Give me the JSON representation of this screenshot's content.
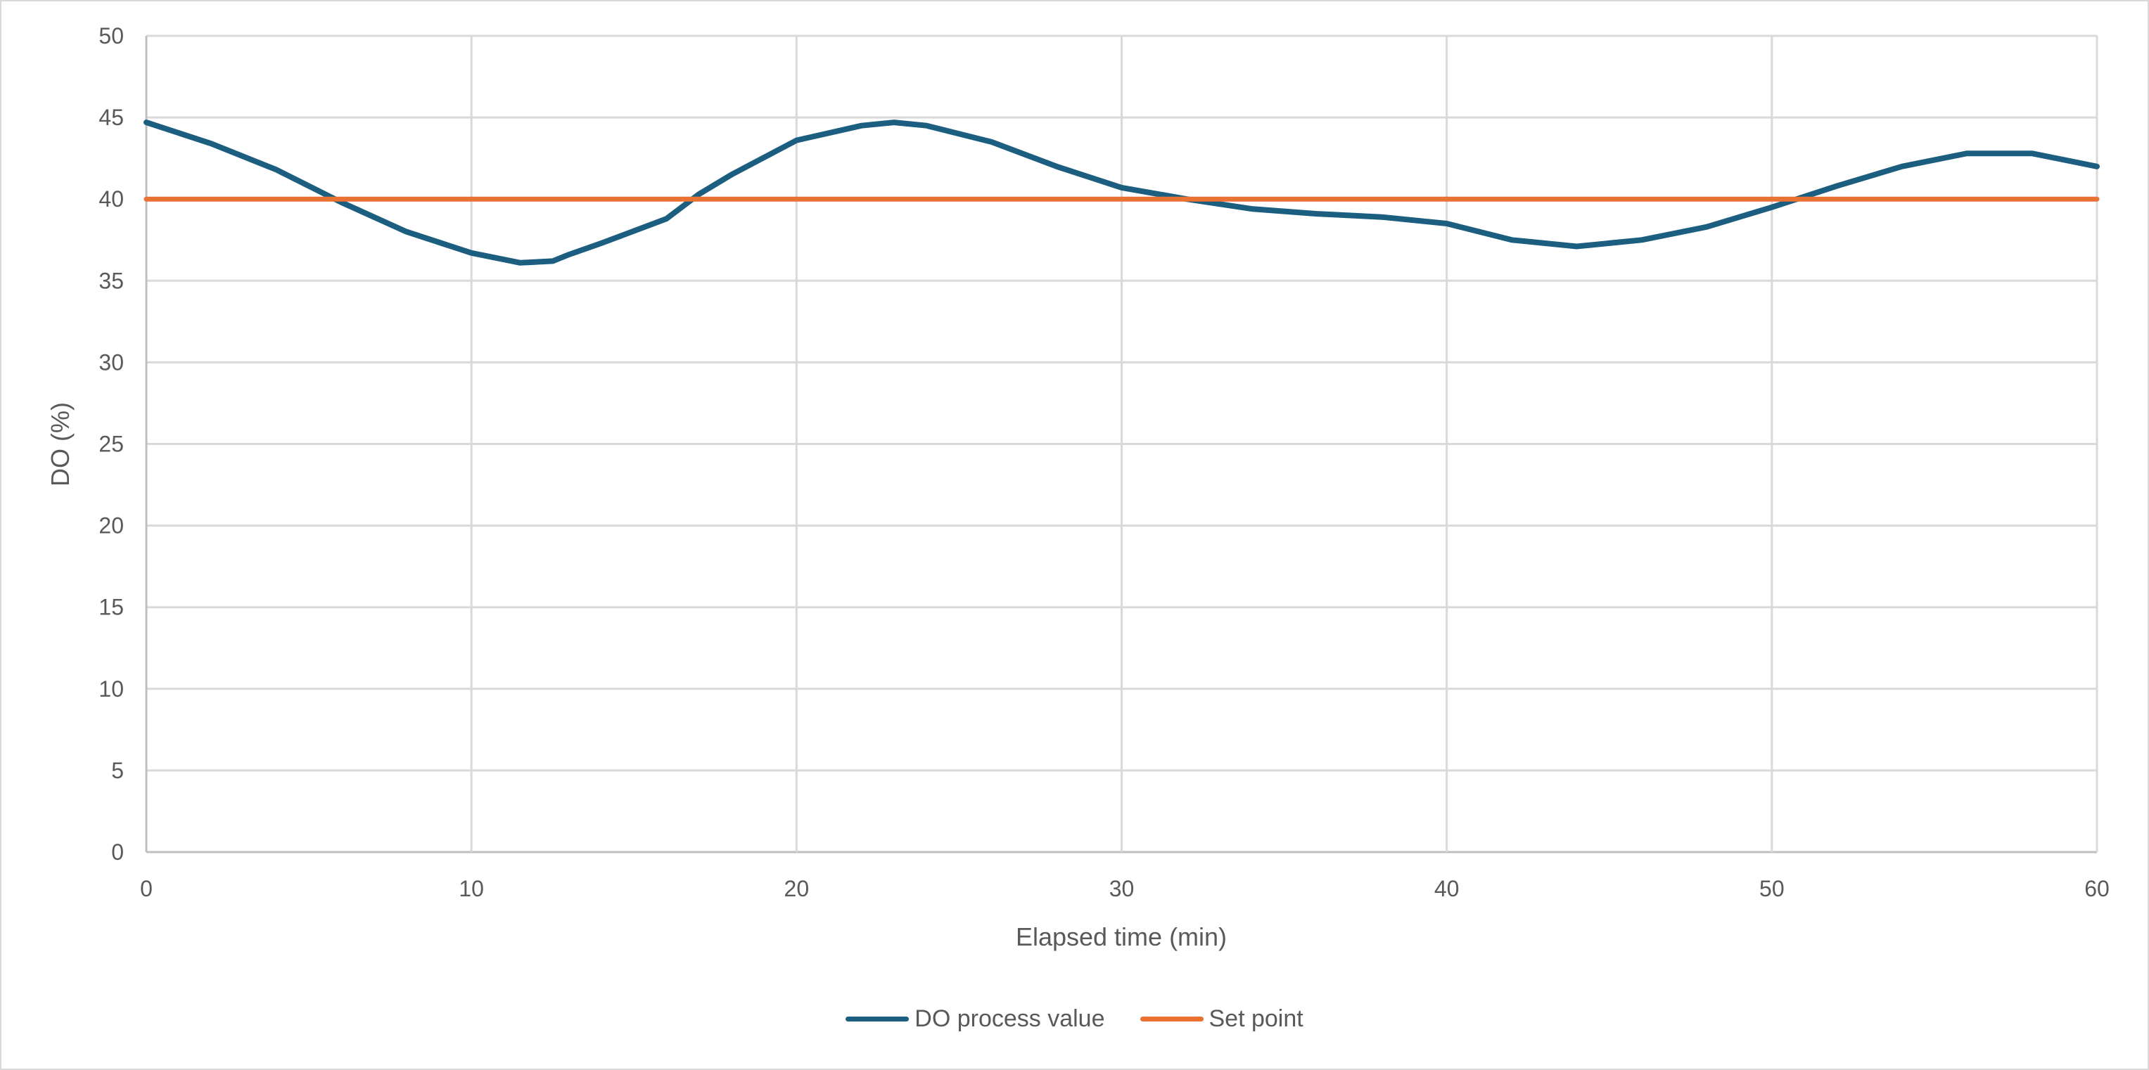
{
  "chart_data": {
    "type": "line",
    "title": "",
    "xlabel": "Elapsed time (min)",
    "ylabel": "DO (%)",
    "xlim": [
      0,
      60
    ],
    "ylim": [
      0,
      50
    ],
    "x_ticks": [
      0,
      10,
      20,
      30,
      40,
      50,
      60
    ],
    "y_ticks": [
      0,
      5,
      10,
      15,
      20,
      25,
      30,
      35,
      40,
      45,
      50
    ],
    "grid": true,
    "legend_position": "bottom",
    "series": [
      {
        "name": "DO process value",
        "color": "#1b5e80",
        "x": [
          0,
          2,
          4,
          6,
          8,
          10,
          11.5,
          12.5,
          13,
          14,
          16,
          17,
          18,
          20,
          22,
          23,
          24,
          26,
          28,
          30,
          32,
          34,
          36,
          38,
          40,
          42,
          44,
          46,
          48,
          50,
          52,
          54,
          56,
          58,
          60
        ],
        "values": [
          44.7,
          43.4,
          41.8,
          39.8,
          38.0,
          36.7,
          36.1,
          36.2,
          36.6,
          37.3,
          38.8,
          40.3,
          41.5,
          43.6,
          44.5,
          44.7,
          44.5,
          43.5,
          42.0,
          40.7,
          40.0,
          39.4,
          39.1,
          38.9,
          38.5,
          37.5,
          37.1,
          37.5,
          38.3,
          39.5,
          40.8,
          42.0,
          42.8,
          42.8,
          42.0
        ]
      },
      {
        "name": "Set point",
        "color": "#e97132",
        "x": [
          0,
          60
        ],
        "values": [
          40,
          40
        ]
      }
    ]
  },
  "legend": {
    "items": [
      {
        "label": "DO process value",
        "color": "#1b5e80"
      },
      {
        "label": "Set point",
        "color": "#e97132"
      }
    ]
  }
}
